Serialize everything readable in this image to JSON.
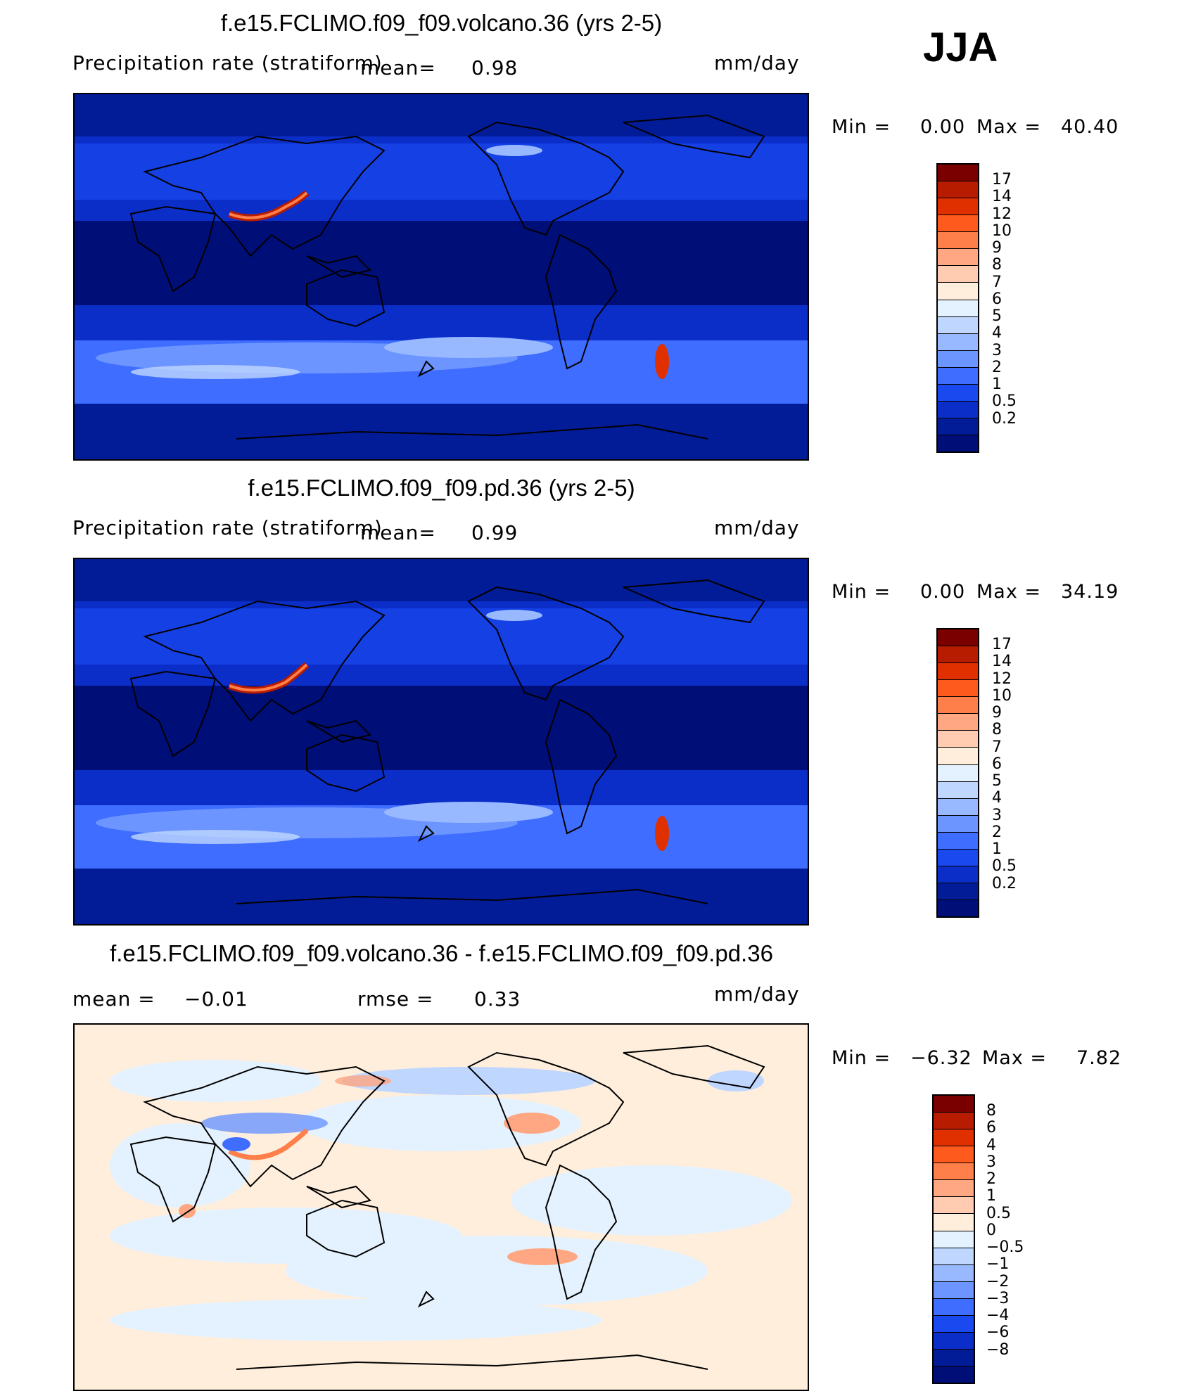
{
  "season": "JJA",
  "panels": [
    {
      "id": "volcano",
      "title": "f.e15.FCLIMO.f09_f09.volcano.36 (yrs 2-5)",
      "variable": "Precipitation rate (stratiform)",
      "mean_label": "mean=",
      "mean_value": "0.98",
      "units": "mm/day",
      "min_label": "Min =",
      "min_value": "0.00",
      "max_label": "Max =",
      "max_value": "40.40",
      "colorbar": {
        "colors": [
          "#7a0000",
          "#b71c00",
          "#e03000",
          "#ff5a1e",
          "#ff7f4a",
          "#ffa682",
          "#ffccb2",
          "#ffeedc",
          "#e4f1fe",
          "#bfd7ff",
          "#98b9ff",
          "#6c95ff",
          "#3f6dff",
          "#1a49f0",
          "#0b2ec8",
          "#021c98",
          "#000f78"
        ],
        "labels": [
          "17",
          "14",
          "12",
          "10",
          "9",
          "8",
          "7",
          "6",
          "5",
          "4",
          "3",
          "2",
          "1",
          "0.5",
          "0.2"
        ]
      }
    },
    {
      "id": "pd",
      "title": "f.e15.FCLIMO.f09_f09.pd.36 (yrs 2-5)",
      "variable": "Precipitation rate (stratiform)",
      "mean_label": "mean=",
      "mean_value": "0.99",
      "units": "mm/day",
      "min_label": "Min =",
      "min_value": "0.00",
      "max_label": "Max =",
      "max_value": "34.19",
      "colorbar": {
        "colors": [
          "#7a0000",
          "#b71c00",
          "#e03000",
          "#ff5a1e",
          "#ff7f4a",
          "#ffa682",
          "#ffccb2",
          "#ffeedc",
          "#e4f1fe",
          "#bfd7ff",
          "#98b9ff",
          "#6c95ff",
          "#3f6dff",
          "#1a49f0",
          "#0b2ec8",
          "#021c98",
          "#000f78"
        ],
        "labels": [
          "17",
          "14",
          "12",
          "10",
          "9",
          "8",
          "7",
          "6",
          "5",
          "4",
          "3",
          "2",
          "1",
          "0.5",
          "0.2"
        ]
      }
    },
    {
      "id": "diff",
      "title": "f.e15.FCLIMO.f09_f09.volcano.36 - f.e15.FCLIMO.f09_f09.pd.36",
      "mean_label": "mean =",
      "mean_value": "−0.01",
      "rmse_label": "rmse =",
      "rmse_value": "0.33",
      "units": "mm/day",
      "min_label": "Min =",
      "min_value": "−6.32",
      "max_label": "Max =",
      "max_value": "7.82",
      "colorbar": {
        "colors": [
          "#7a0000",
          "#b71c00",
          "#e03000",
          "#ff5a1e",
          "#ff7f4a",
          "#ffa682",
          "#ffccb2",
          "#ffeedc",
          "#e4f1fe",
          "#bfd7ff",
          "#98b9ff",
          "#6c95ff",
          "#3f6dff",
          "#1a49f0",
          "#0b2ec8",
          "#021c98",
          "#000f78"
        ],
        "labels": [
          "8",
          "6",
          "4",
          "3",
          "2",
          "1",
          "0.5",
          "0",
          "−0.5",
          "−1",
          "−2",
          "−3",
          "−4",
          "−6",
          "−8"
        ]
      }
    }
  ]
}
